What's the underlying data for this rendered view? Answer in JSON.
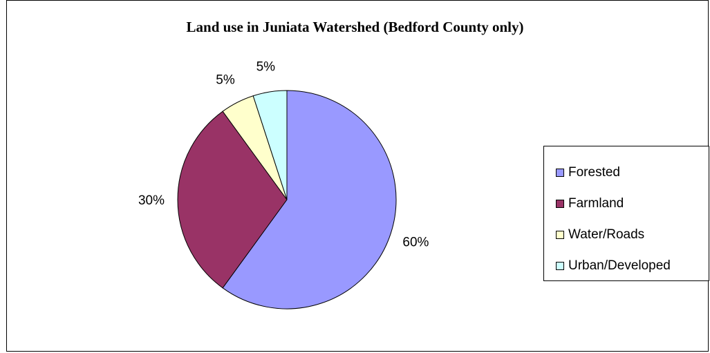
{
  "chart_data": {
    "type": "pie",
    "title": "Land use in Juniata Watershed (Bedford County only)",
    "legend_position": "right",
    "slices": [
      {
        "label": "Forested",
        "value": 60,
        "value_label": "60%",
        "color": "#9999ff"
      },
      {
        "label": "Farmland",
        "value": 30,
        "value_label": "30%",
        "color": "#993366"
      },
      {
        "label": "Water/Roads",
        "value": 5,
        "value_label": "5%",
        "color": "#ffffcc"
      },
      {
        "label": "Urban/Developed",
        "value": 5,
        "value_label": "5%",
        "color": "#ccffff"
      }
    ]
  }
}
